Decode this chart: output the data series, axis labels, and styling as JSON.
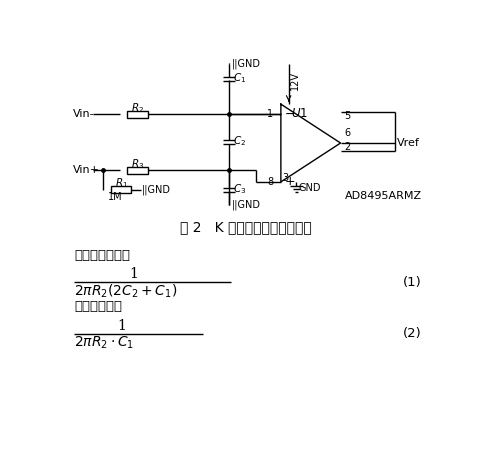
{
  "bg_color": "#ffffff",
  "line_color": "#000000",
  "fig_width": 4.8,
  "fig_height": 4.7,
  "dpi": 100,
  "caption": "图 2   K 型热电偶冷端补偿电路",
  "text1": "其差分带宽为：",
  "text2": "共模带宽为：",
  "eq1_num": "1",
  "eq1_den": "2\\pi R_2(2C_2+C_1)",
  "eq2_num": "1",
  "eq2_den": "2\\pi R_2 \\cdot C_1"
}
